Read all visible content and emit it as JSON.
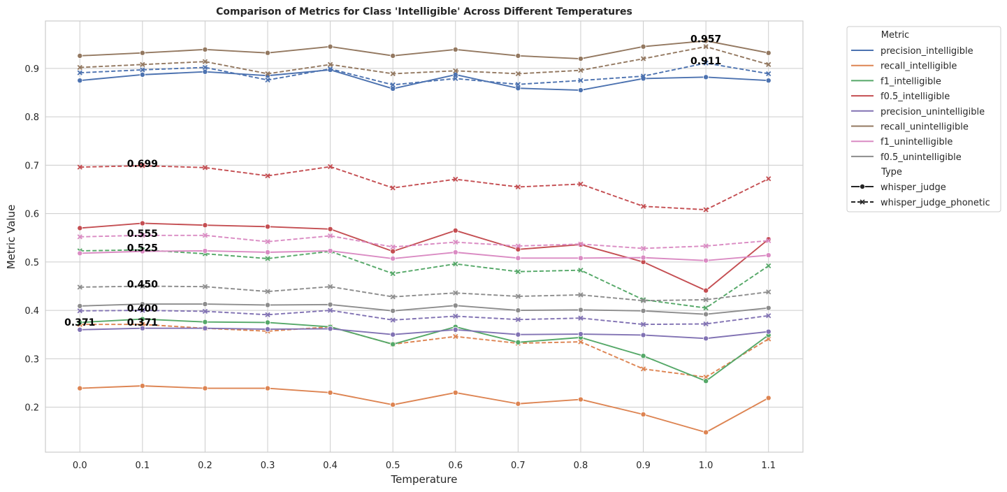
{
  "chart_data": {
    "type": "line",
    "title": "Comparison of Metrics for Class 'Intelligible' Across Different Temperatures",
    "xlabel": "Temperature",
    "ylabel": "Metric Value",
    "x": [
      0.0,
      0.1,
      0.2,
      0.3,
      0.4,
      0.5,
      0.6,
      0.7,
      0.8,
      0.9,
      1.0,
      1.1
    ],
    "x_tick_labels": [
      "0.0",
      "0.1",
      "0.2",
      "0.3",
      "0.4",
      "0.5",
      "0.6",
      "0.7",
      "0.8",
      "0.9",
      "1.0",
      "1.1"
    ],
    "xlim": [
      -0.055,
      1.155
    ],
    "ylim": [
      0.107,
      0.998
    ],
    "y_ticks": [
      0.2,
      0.3,
      0.4,
      0.5,
      0.6,
      0.7,
      0.8,
      0.9
    ],
    "y_tick_labels": [
      "0.2",
      "0.3",
      "0.4",
      "0.5",
      "0.6",
      "0.7",
      "0.8",
      "0.9"
    ],
    "grid": true,
    "legend_position": "outside-right",
    "legend": {
      "metric_title": "Metric",
      "type_title": "Type",
      "metrics": [
        {
          "name": "precision_intelligible",
          "color": "#4c72b0"
        },
        {
          "name": "recall_intelligible",
          "color": "#dd8452"
        },
        {
          "name": "f1_intelligible",
          "color": "#55a868"
        },
        {
          "name": "f0.5_intelligible",
          "color": "#c44e52"
        },
        {
          "name": "precision_unintelligible",
          "color": "#8172b3"
        },
        {
          "name": "recall_unintelligible",
          "color": "#937860"
        },
        {
          "name": "f1_unintelligible",
          "color": "#da8bc3"
        },
        {
          "name": "f0.5_unintelligible",
          "color": "#8c8c8c"
        }
      ],
      "types": [
        {
          "name": "whisper_judge",
          "style": "solid",
          "marker": "circle"
        },
        {
          "name": "whisper_judge_phonetic",
          "style": "dashed",
          "marker": "x"
        }
      ]
    },
    "series": [
      {
        "metric": "precision_intelligible",
        "type": "whisper_judge",
        "color": "#4c72b0",
        "values": [
          0.875,
          0.887,
          0.893,
          0.885,
          0.897,
          0.858,
          0.887,
          0.859,
          0.855,
          0.879,
          0.882,
          0.875
        ]
      },
      {
        "metric": "precision_intelligible",
        "type": "whisper_judge_phonetic",
        "color": "#4c72b0",
        "values": [
          0.891,
          0.897,
          0.902,
          0.876,
          0.899,
          0.866,
          0.879,
          0.867,
          0.875,
          0.884,
          0.911,
          0.889
        ]
      },
      {
        "metric": "recall_intelligible",
        "type": "whisper_judge",
        "color": "#dd8452",
        "values": [
          0.239,
          0.244,
          0.239,
          0.239,
          0.23,
          0.205,
          0.23,
          0.207,
          0.216,
          0.185,
          0.148,
          0.219
        ]
      },
      {
        "metric": "recall_intelligible",
        "type": "whisper_judge_phonetic",
        "color": "#dd8452",
        "values": [
          0.371,
          0.371,
          0.363,
          0.357,
          0.366,
          0.33,
          0.346,
          0.332,
          0.335,
          0.279,
          0.262,
          0.341
        ]
      },
      {
        "metric": "f1_intelligible",
        "type": "whisper_judge",
        "color": "#55a868",
        "values": [
          0.375,
          0.382,
          0.376,
          0.375,
          0.366,
          0.33,
          0.366,
          0.334,
          0.344,
          0.306,
          0.254,
          0.349
        ]
      },
      {
        "metric": "f1_intelligible",
        "type": "whisper_judge_phonetic",
        "color": "#55a868",
        "values": [
          0.523,
          0.525,
          0.517,
          0.507,
          0.522,
          0.476,
          0.496,
          0.48,
          0.483,
          0.422,
          0.405,
          0.492
        ]
      },
      {
        "metric": "f0.5_intelligible",
        "type": "whisper_judge",
        "color": "#c44e52",
        "values": [
          0.57,
          0.58,
          0.576,
          0.573,
          0.568,
          0.522,
          0.565,
          0.526,
          0.536,
          0.5,
          0.441,
          0.547
        ]
      },
      {
        "metric": "f0.5_intelligible",
        "type": "whisper_judge_phonetic",
        "color": "#c44e52",
        "values": [
          0.696,
          0.699,
          0.695,
          0.678,
          0.697,
          0.653,
          0.671,
          0.655,
          0.661,
          0.615,
          0.608,
          0.672
        ]
      },
      {
        "metric": "precision_unintelligible",
        "type": "whisper_judge",
        "color": "#8172b3",
        "values": [
          0.36,
          0.363,
          0.363,
          0.361,
          0.362,
          0.35,
          0.36,
          0.35,
          0.351,
          0.349,
          0.342,
          0.356
        ]
      },
      {
        "metric": "precision_unintelligible",
        "type": "whisper_judge_phonetic",
        "color": "#8172b3",
        "values": [
          0.399,
          0.4,
          0.398,
          0.391,
          0.4,
          0.38,
          0.388,
          0.381,
          0.384,
          0.371,
          0.372,
          0.389
        ]
      },
      {
        "metric": "recall_unintelligible",
        "type": "whisper_judge",
        "color": "#937860",
        "values": [
          0.926,
          0.932,
          0.939,
          0.932,
          0.945,
          0.926,
          0.939,
          0.926,
          0.92,
          0.945,
          0.957,
          0.932
        ]
      },
      {
        "metric": "recall_unintelligible",
        "type": "whisper_judge_phonetic",
        "color": "#937860",
        "values": [
          0.902,
          0.908,
          0.914,
          0.889,
          0.908,
          0.889,
          0.895,
          0.889,
          0.896,
          0.92,
          0.945,
          0.908
        ]
      },
      {
        "metric": "f1_unintelligible",
        "type": "whisper_judge",
        "color": "#da8bc3",
        "values": [
          0.518,
          0.522,
          0.523,
          0.52,
          0.523,
          0.507,
          0.52,
          0.508,
          0.508,
          0.509,
          0.503,
          0.514
        ]
      },
      {
        "metric": "f1_unintelligible",
        "type": "whisper_judge_phonetic",
        "color": "#da8bc3",
        "values": [
          0.552,
          0.555,
          0.555,
          0.542,
          0.554,
          0.531,
          0.541,
          0.533,
          0.537,
          0.528,
          0.533,
          0.544
        ]
      },
      {
        "metric": "f0.5_unintelligible",
        "type": "whisper_judge",
        "color": "#8c8c8c",
        "values": [
          0.409,
          0.413,
          0.413,
          0.411,
          0.412,
          0.399,
          0.41,
          0.4,
          0.401,
          0.399,
          0.392,
          0.405
        ]
      },
      {
        "metric": "f0.5_unintelligible",
        "type": "whisper_judge_phonetic",
        "color": "#8c8c8c",
        "values": [
          0.448,
          0.45,
          0.449,
          0.439,
          0.449,
          0.428,
          0.436,
          0.429,
          0.432,
          0.42,
          0.422,
          0.438
        ]
      }
    ],
    "annotations": [
      {
        "text": "0.957",
        "x": 1.0,
        "y": 0.957
      },
      {
        "text": "0.911",
        "x": 1.0,
        "y": 0.911
      },
      {
        "text": "0.699",
        "x": 0.1,
        "y": 0.699
      },
      {
        "text": "0.555",
        "x": 0.1,
        "y": 0.555
      },
      {
        "text": "0.525",
        "x": 0.1,
        "y": 0.525
      },
      {
        "text": "0.450",
        "x": 0.1,
        "y": 0.45
      },
      {
        "text": "0.400",
        "x": 0.1,
        "y": 0.4
      },
      {
        "text": "0.371",
        "x": 0.0,
        "y": 0.371
      },
      {
        "text": "0.371",
        "x": 0.1,
        "y": 0.371
      }
    ]
  }
}
